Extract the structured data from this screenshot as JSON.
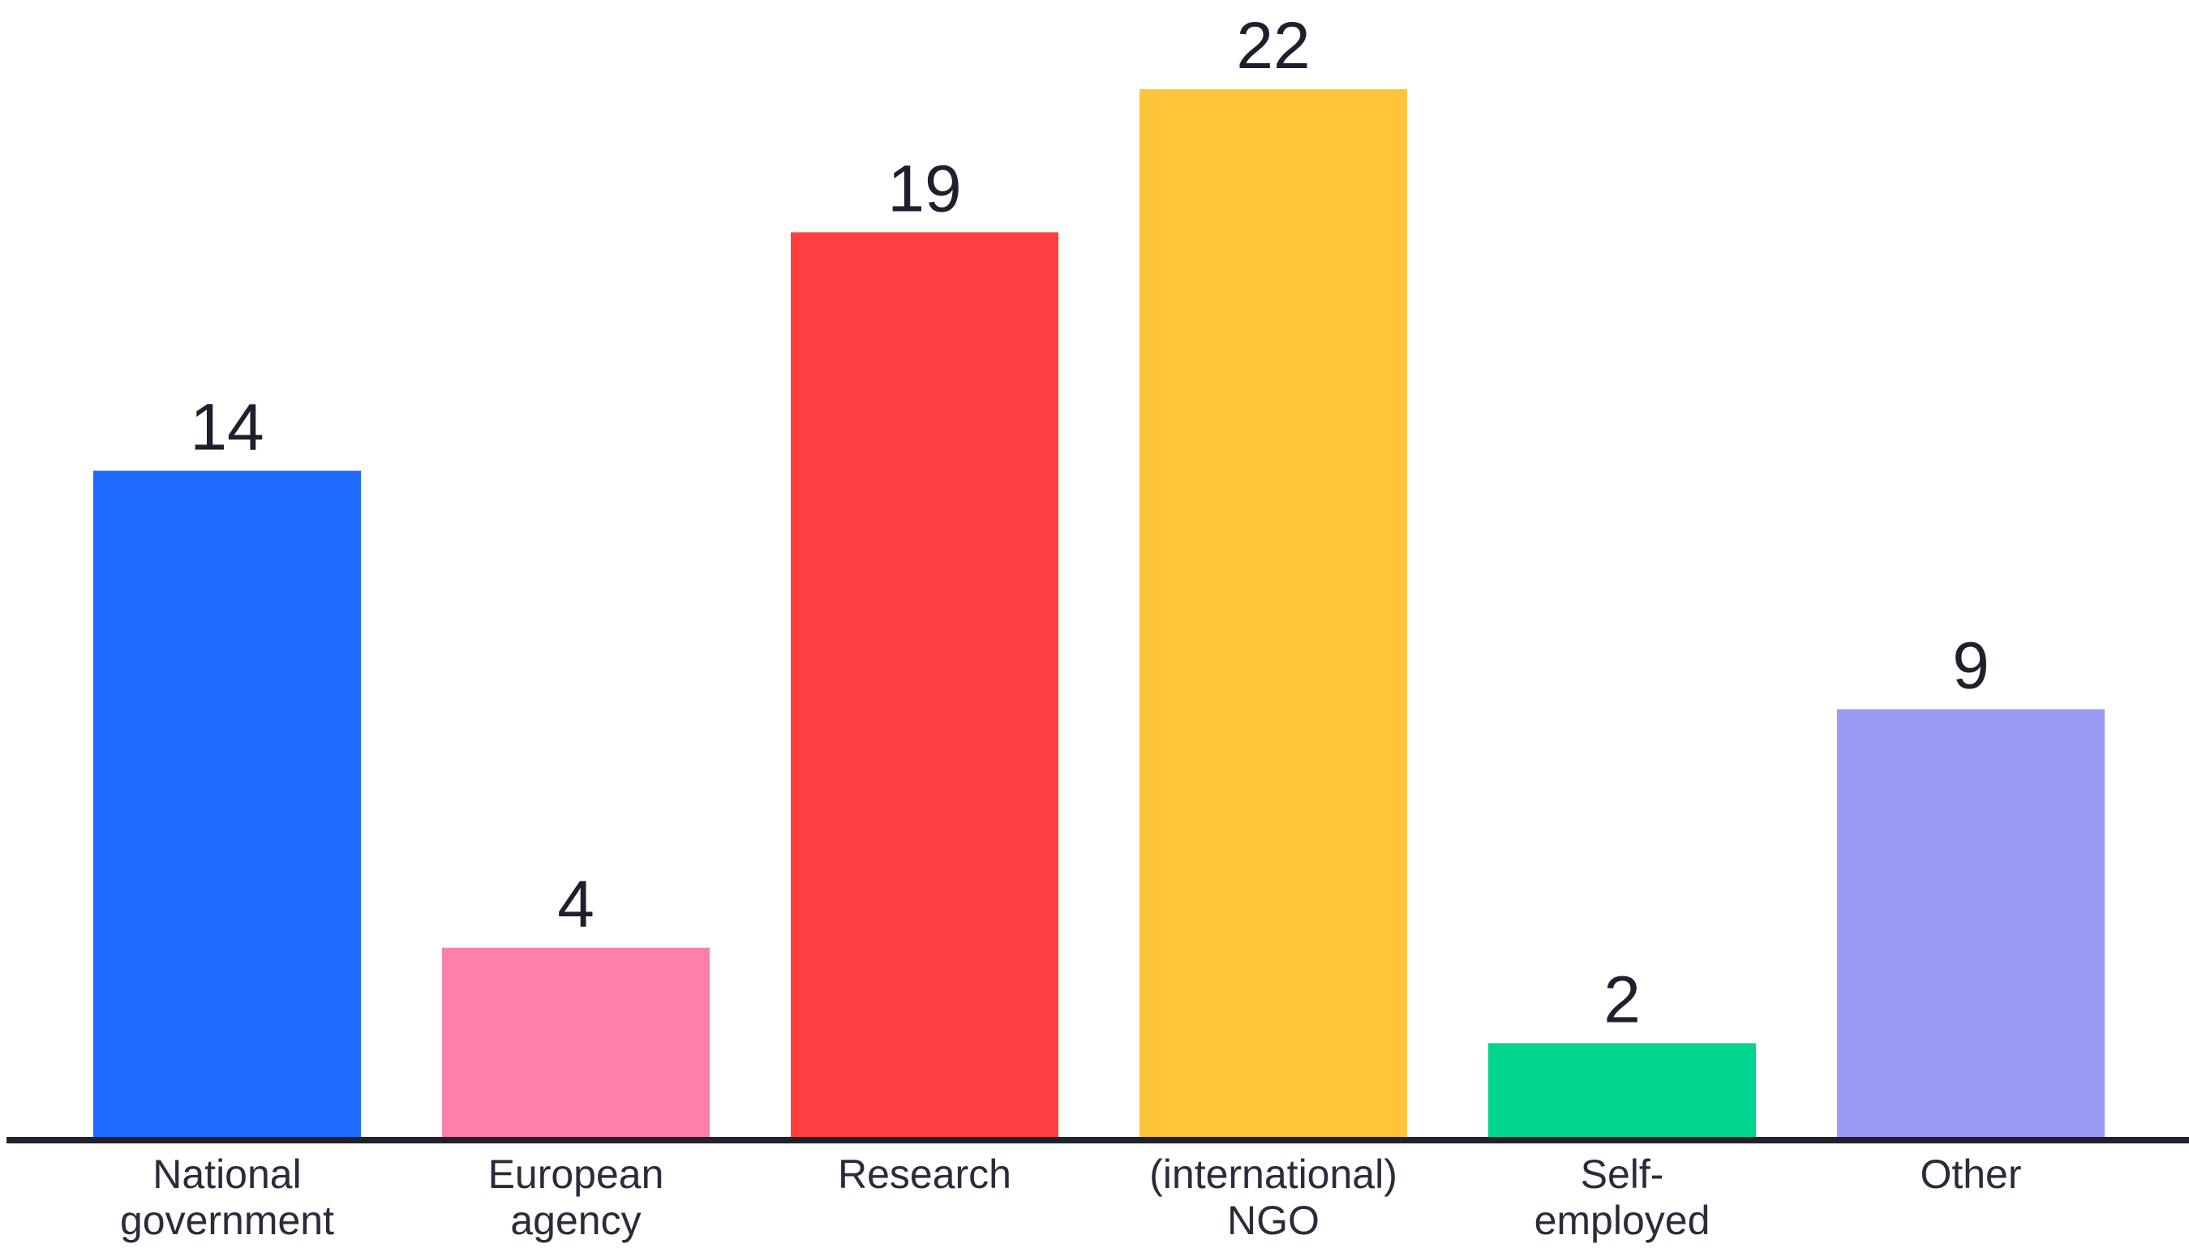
{
  "chart_data": {
    "type": "bar",
    "categories": [
      [
        "National",
        "government"
      ],
      [
        "European",
        "agency"
      ],
      [
        "Research"
      ],
      [
        "(international)",
        "NGO"
      ],
      [
        "Self-",
        "employed"
      ],
      [
        "Other"
      ]
    ],
    "values": [
      14,
      4,
      19,
      22,
      2,
      9
    ],
    "colors": [
      "#1f6bff",
      "#ff7fab",
      "#ff3f3f",
      "#ffc43a",
      "#00d68f",
      "#9a9af2"
    ],
    "axis_color": "#22222e",
    "title": "",
    "xlabel": "",
    "ylabel": "",
    "ylim": [
      0,
      22
    ],
    "grid": false,
    "legend": "none",
    "data_labels": true
  }
}
